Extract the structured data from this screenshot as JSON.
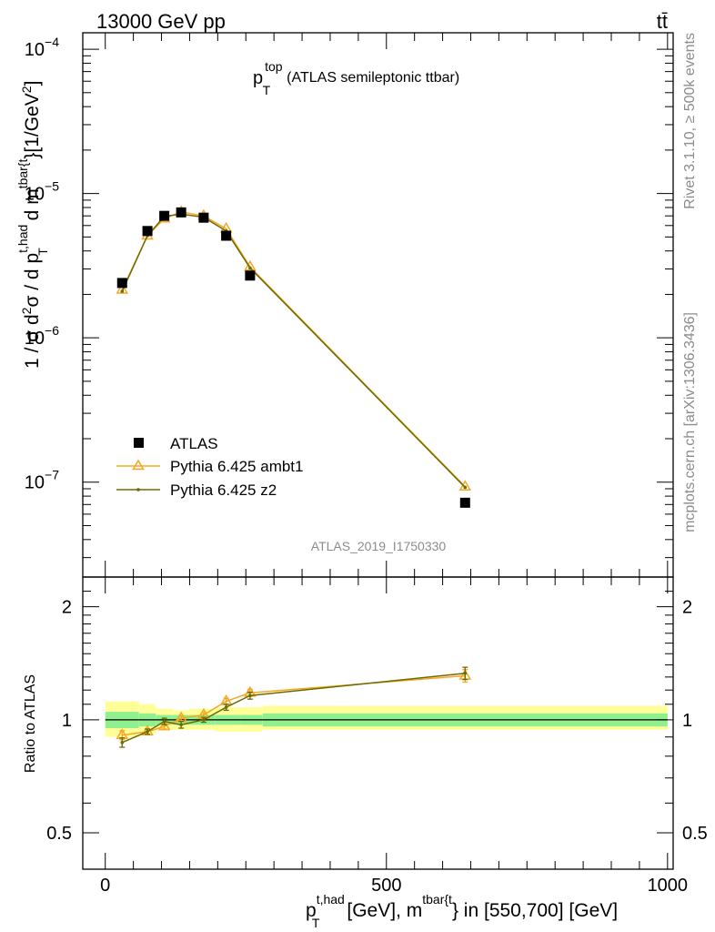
{
  "header": {
    "energy_label": "13000 GeV pp",
    "process_label": "tt̄",
    "side_label_top": "Rivet 3.1.10, ≥ 500k events",
    "side_label_bottom": "mcplots.cern.ch [arXiv:1306.3436]",
    "analysis_id": "ATLAS_2019_I1750330"
  },
  "colors": {
    "data": "#000000",
    "ambt1": "#f5a623",
    "z2": "#6b6b00",
    "band_inner": "#90f090",
    "band_outer": "#ffff99"
  },
  "chart_data": [
    {
      "type": "scatter",
      "panel": "main",
      "title": "p_T^top (ATLAS semileptonic ttbar)",
      "title_parts": {
        "main": "p",
        "sup": "top",
        "sub": "T",
        "rest": "(ATLAS semileptonic ttbar)"
      },
      "ylabel": "1 / σ d²σ / d p_T^{t,had} d m^{tbar{t}} [1/GeV²]",
      "yscale": "log",
      "ylim": [
        2.2e-08,
        0.00013
      ],
      "xlim": [
        -40,
        1010
      ],
      "y_ticks": [
        {
          "value": 1e-07,
          "label": "10",
          "exp": "−7"
        },
        {
          "value": 1e-06,
          "label": "10",
          "exp": "−6"
        },
        {
          "value": 1e-05,
          "label": "10",
          "exp": "−5"
        },
        {
          "value": 0.0001,
          "label": "10",
          "exp": "−4"
        }
      ],
      "legend_position": "lower-left",
      "series": [
        {
          "name": "ATLAS",
          "style": "square",
          "x": [
            30,
            75,
            105,
            135,
            175,
            215,
            257.5,
            640
          ],
          "y": [
            2.4e-06,
            5.5e-06,
            7e-06,
            7.4e-06,
            6.8e-06,
            5.1e-06,
            2.7e-06,
            7.2e-08
          ]
        },
        {
          "name": "Pythia 6.425 ambt1",
          "style": "triangle",
          "x": [
            30,
            75,
            105,
            135,
            175,
            215,
            257.5,
            640
          ],
          "y": [
            2.15e-06,
            5.1e-06,
            6.7e-06,
            7.45e-06,
            7e-06,
            5.7e-06,
            3.1e-06,
            9.3e-08
          ]
        },
        {
          "name": "Pythia 6.425 z2",
          "style": "dot",
          "x": [
            30,
            75,
            105,
            135,
            175,
            215,
            257.5,
            640
          ],
          "y": [
            2.1e-06,
            5.1e-06,
            6.95e-06,
            7.2e-06,
            6.85e-06,
            5.5e-06,
            3.05e-06,
            9.2e-08
          ]
        }
      ]
    },
    {
      "type": "line",
      "panel": "ratio",
      "ylabel": "Ratio to ATLAS",
      "xlabel": "p_T^{t,had} [GeV], m^{tbar{t}} in [550,700] [GeV]",
      "xlabel_parts": {
        "p": "p",
        "sup": "t,had",
        "sub": "T",
        "mid": "[GeV], m",
        "sup2": "tbar{t",
        "end": "} in [550,700] [GeV]"
      },
      "yscale": "log",
      "ylim": [
        0.4,
        2.4
      ],
      "xlim": [
        -40,
        1010
      ],
      "x_ticks": [
        0,
        500,
        1000
      ],
      "y_ticks": [
        {
          "value": 0.5,
          "label": "0.5"
        },
        {
          "value": 1,
          "label": "1"
        },
        {
          "value": 2,
          "label": "2"
        }
      ],
      "band": {
        "edges": [
          0,
          60,
          90,
          120,
          150,
          195,
          240,
          280,
          1000
        ],
        "inner_lo": [
          0.95,
          0.96,
          0.97,
          0.97,
          0.97,
          0.97,
          0.97,
          0.96,
          0.96
        ],
        "inner_hi": [
          1.05,
          1.04,
          1.03,
          1.03,
          1.03,
          1.03,
          1.03,
          1.04,
          1.04
        ],
        "outer_lo": [
          0.9,
          0.92,
          0.94,
          0.94,
          0.94,
          0.93,
          0.93,
          0.94,
          0.94
        ],
        "outer_hi": [
          1.12,
          1.1,
          1.07,
          1.06,
          1.07,
          1.08,
          1.08,
          1.09,
          1.09
        ]
      },
      "series": [
        {
          "name": "Pythia 6.425 ambt1",
          "style": "triangle",
          "x": [
            30,
            75,
            105,
            135,
            175,
            215,
            257.5,
            640
          ],
          "y": [
            0.91,
            0.93,
            0.96,
            1.01,
            1.03,
            1.12,
            1.18,
            1.31
          ],
          "err": [
            0.025,
            0.015,
            0.015,
            0.015,
            0.015,
            0.02,
            0.025,
            0.05
          ]
        },
        {
          "name": "Pythia 6.425 z2",
          "style": "dot",
          "x": [
            30,
            75,
            105,
            135,
            175,
            215,
            257.5,
            640
          ],
          "y": [
            0.87,
            0.93,
            0.99,
            0.97,
            1.0,
            1.08,
            1.16,
            1.33
          ],
          "err": [
            0.025,
            0.015,
            0.02,
            0.02,
            0.015,
            0.02,
            0.025,
            0.05
          ]
        }
      ]
    }
  ]
}
